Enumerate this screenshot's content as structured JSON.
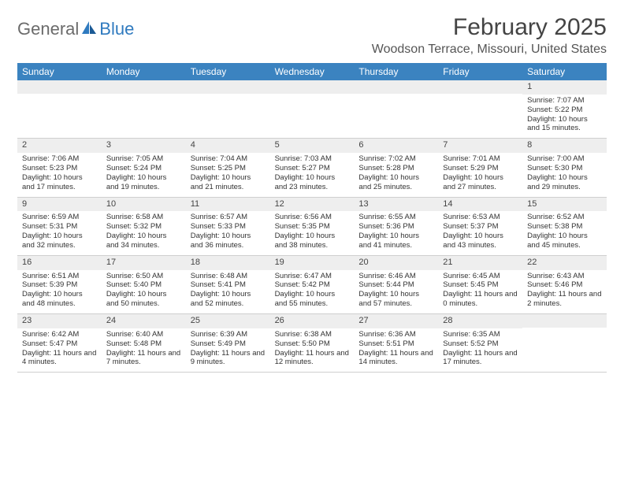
{
  "logo": {
    "text1": "General",
    "text2": "Blue"
  },
  "title": "February 2025",
  "location": "Woodson Terrace, Missouri, United States",
  "colors": {
    "header_bg": "#3b83c0",
    "header_text": "#ffffff",
    "daynum_bg": "#eeeeee",
    "body_text": "#333333",
    "logo_gray": "#6b6b6b",
    "logo_blue": "#2f7abf",
    "border": "#cfcfcf"
  },
  "day_headers": [
    "Sunday",
    "Monday",
    "Tuesday",
    "Wednesday",
    "Thursday",
    "Friday",
    "Saturday"
  ],
  "weeks": [
    [
      {
        "day": "",
        "sunrise": "",
        "sunset": "",
        "daylight": ""
      },
      {
        "day": "",
        "sunrise": "",
        "sunset": "",
        "daylight": ""
      },
      {
        "day": "",
        "sunrise": "",
        "sunset": "",
        "daylight": ""
      },
      {
        "day": "",
        "sunrise": "",
        "sunset": "",
        "daylight": ""
      },
      {
        "day": "",
        "sunrise": "",
        "sunset": "",
        "daylight": ""
      },
      {
        "day": "",
        "sunrise": "",
        "sunset": "",
        "daylight": ""
      },
      {
        "day": "1",
        "sunrise": "Sunrise: 7:07 AM",
        "sunset": "Sunset: 5:22 PM",
        "daylight": "Daylight: 10 hours and 15 minutes."
      }
    ],
    [
      {
        "day": "2",
        "sunrise": "Sunrise: 7:06 AM",
        "sunset": "Sunset: 5:23 PM",
        "daylight": "Daylight: 10 hours and 17 minutes."
      },
      {
        "day": "3",
        "sunrise": "Sunrise: 7:05 AM",
        "sunset": "Sunset: 5:24 PM",
        "daylight": "Daylight: 10 hours and 19 minutes."
      },
      {
        "day": "4",
        "sunrise": "Sunrise: 7:04 AM",
        "sunset": "Sunset: 5:25 PM",
        "daylight": "Daylight: 10 hours and 21 minutes."
      },
      {
        "day": "5",
        "sunrise": "Sunrise: 7:03 AM",
        "sunset": "Sunset: 5:27 PM",
        "daylight": "Daylight: 10 hours and 23 minutes."
      },
      {
        "day": "6",
        "sunrise": "Sunrise: 7:02 AM",
        "sunset": "Sunset: 5:28 PM",
        "daylight": "Daylight: 10 hours and 25 minutes."
      },
      {
        "day": "7",
        "sunrise": "Sunrise: 7:01 AM",
        "sunset": "Sunset: 5:29 PM",
        "daylight": "Daylight: 10 hours and 27 minutes."
      },
      {
        "day": "8",
        "sunrise": "Sunrise: 7:00 AM",
        "sunset": "Sunset: 5:30 PM",
        "daylight": "Daylight: 10 hours and 29 minutes."
      }
    ],
    [
      {
        "day": "9",
        "sunrise": "Sunrise: 6:59 AM",
        "sunset": "Sunset: 5:31 PM",
        "daylight": "Daylight: 10 hours and 32 minutes."
      },
      {
        "day": "10",
        "sunrise": "Sunrise: 6:58 AM",
        "sunset": "Sunset: 5:32 PM",
        "daylight": "Daylight: 10 hours and 34 minutes."
      },
      {
        "day": "11",
        "sunrise": "Sunrise: 6:57 AM",
        "sunset": "Sunset: 5:33 PM",
        "daylight": "Daylight: 10 hours and 36 minutes."
      },
      {
        "day": "12",
        "sunrise": "Sunrise: 6:56 AM",
        "sunset": "Sunset: 5:35 PM",
        "daylight": "Daylight: 10 hours and 38 minutes."
      },
      {
        "day": "13",
        "sunrise": "Sunrise: 6:55 AM",
        "sunset": "Sunset: 5:36 PM",
        "daylight": "Daylight: 10 hours and 41 minutes."
      },
      {
        "day": "14",
        "sunrise": "Sunrise: 6:53 AM",
        "sunset": "Sunset: 5:37 PM",
        "daylight": "Daylight: 10 hours and 43 minutes."
      },
      {
        "day": "15",
        "sunrise": "Sunrise: 6:52 AM",
        "sunset": "Sunset: 5:38 PM",
        "daylight": "Daylight: 10 hours and 45 minutes."
      }
    ],
    [
      {
        "day": "16",
        "sunrise": "Sunrise: 6:51 AM",
        "sunset": "Sunset: 5:39 PM",
        "daylight": "Daylight: 10 hours and 48 minutes."
      },
      {
        "day": "17",
        "sunrise": "Sunrise: 6:50 AM",
        "sunset": "Sunset: 5:40 PM",
        "daylight": "Daylight: 10 hours and 50 minutes."
      },
      {
        "day": "18",
        "sunrise": "Sunrise: 6:48 AM",
        "sunset": "Sunset: 5:41 PM",
        "daylight": "Daylight: 10 hours and 52 minutes."
      },
      {
        "day": "19",
        "sunrise": "Sunrise: 6:47 AM",
        "sunset": "Sunset: 5:42 PM",
        "daylight": "Daylight: 10 hours and 55 minutes."
      },
      {
        "day": "20",
        "sunrise": "Sunrise: 6:46 AM",
        "sunset": "Sunset: 5:44 PM",
        "daylight": "Daylight: 10 hours and 57 minutes."
      },
      {
        "day": "21",
        "sunrise": "Sunrise: 6:45 AM",
        "sunset": "Sunset: 5:45 PM",
        "daylight": "Daylight: 11 hours and 0 minutes."
      },
      {
        "day": "22",
        "sunrise": "Sunrise: 6:43 AM",
        "sunset": "Sunset: 5:46 PM",
        "daylight": "Daylight: 11 hours and 2 minutes."
      }
    ],
    [
      {
        "day": "23",
        "sunrise": "Sunrise: 6:42 AM",
        "sunset": "Sunset: 5:47 PM",
        "daylight": "Daylight: 11 hours and 4 minutes."
      },
      {
        "day": "24",
        "sunrise": "Sunrise: 6:40 AM",
        "sunset": "Sunset: 5:48 PM",
        "daylight": "Daylight: 11 hours and 7 minutes."
      },
      {
        "day": "25",
        "sunrise": "Sunrise: 6:39 AM",
        "sunset": "Sunset: 5:49 PM",
        "daylight": "Daylight: 11 hours and 9 minutes."
      },
      {
        "day": "26",
        "sunrise": "Sunrise: 6:38 AM",
        "sunset": "Sunset: 5:50 PM",
        "daylight": "Daylight: 11 hours and 12 minutes."
      },
      {
        "day": "27",
        "sunrise": "Sunrise: 6:36 AM",
        "sunset": "Sunset: 5:51 PM",
        "daylight": "Daylight: 11 hours and 14 minutes."
      },
      {
        "day": "28",
        "sunrise": "Sunrise: 6:35 AM",
        "sunset": "Sunset: 5:52 PM",
        "daylight": "Daylight: 11 hours and 17 minutes."
      },
      {
        "day": "",
        "sunrise": "",
        "sunset": "",
        "daylight": ""
      }
    ]
  ]
}
